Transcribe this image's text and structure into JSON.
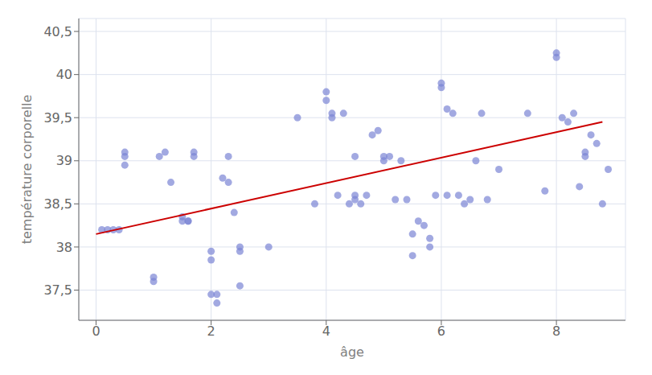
{
  "chart_data": {
    "type": "scatter",
    "xlabel": "âge",
    "ylabel": "température corporelle",
    "xlim": [
      -0.3,
      9.2
    ],
    "ylim": [
      37.15,
      40.65
    ],
    "xticks": [
      0,
      2,
      4,
      6,
      8
    ],
    "yticks": [
      {
        "value": 37.5,
        "label": "37,5"
      },
      38,
      {
        "value": 38.5,
        "label": "38,5"
      },
      39,
      {
        "value": 39.5,
        "label": "39,5"
      },
      40,
      {
        "value": 40.5,
        "label": "40,5"
      }
    ],
    "grid": true,
    "series": [
      {
        "type": "scatter",
        "marker": "circle",
        "color": "#7b85d4",
        "x": [
          0.1,
          0.2,
          0.3,
          0.4,
          0.5,
          0.5,
          0.5,
          1.0,
          1.0,
          1.1,
          1.2,
          1.3,
          1.5,
          1.5,
          1.6,
          1.6,
          1.7,
          1.7,
          2.0,
          2.0,
          2.0,
          2.1,
          2.1,
          2.2,
          2.3,
          2.3,
          2.4,
          2.5,
          2.5,
          2.5,
          3.0,
          3.5,
          3.8,
          4.0,
          4.0,
          4.1,
          4.1,
          4.2,
          4.3,
          4.4,
          4.5,
          4.5,
          4.5,
          4.6,
          4.7,
          4.8,
          4.9,
          5.0,
          5.0,
          5.1,
          5.2,
          5.3,
          5.4,
          5.5,
          5.5,
          5.6,
          5.7,
          5.8,
          5.8,
          5.9,
          6.0,
          6.0,
          6.1,
          6.1,
          6.2,
          6.3,
          6.4,
          6.5,
          6.6,
          6.7,
          6.8,
          7.0,
          7.5,
          7.8,
          8.0,
          8.0,
          8.1,
          8.2,
          8.3,
          8.4,
          8.5,
          8.5,
          8.6,
          8.7,
          8.8,
          8.9
        ],
        "values": [
          38.2,
          38.2,
          38.2,
          38.2,
          39.05,
          39.1,
          38.95,
          37.6,
          37.65,
          39.05,
          39.1,
          38.75,
          38.35,
          38.3,
          38.3,
          38.3,
          39.05,
          39.1,
          37.95,
          37.85,
          37.45,
          37.45,
          37.35,
          38.8,
          38.75,
          39.05,
          38.4,
          37.95,
          38.0,
          37.55,
          38.0,
          39.5,
          38.5,
          39.7,
          39.8,
          39.5,
          39.55,
          38.6,
          39.55,
          38.5,
          38.55,
          38.6,
          39.05,
          38.5,
          38.6,
          39.3,
          39.35,
          39.0,
          39.05,
          39.05,
          38.55,
          39.0,
          38.55,
          37.9,
          38.15,
          38.3,
          38.25,
          38.1,
          38.0,
          38.6,
          39.9,
          39.85,
          39.6,
          38.6,
          39.55,
          38.6,
          38.5,
          38.55,
          39.0,
          39.55,
          38.55,
          38.9,
          39.55,
          38.65,
          40.25,
          40.2,
          39.5,
          39.45,
          39.55,
          38.7,
          39.05,
          39.1,
          39.3,
          39.2,
          38.5,
          38.9
        ]
      },
      {
        "type": "line",
        "color": "#cc0000",
        "x": [
          0.0,
          8.8
        ],
        "values": [
          38.15,
          39.45
        ]
      }
    ]
  }
}
